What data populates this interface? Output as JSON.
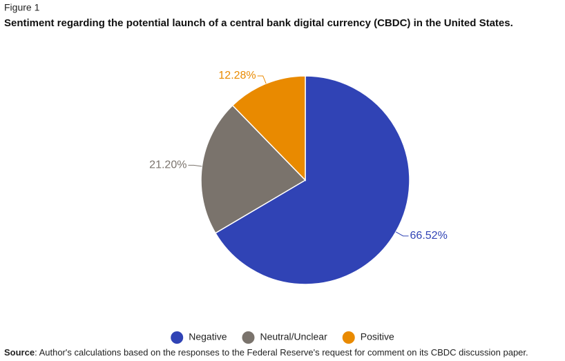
{
  "figure_label": "Figure 1",
  "chart_data": {
    "type": "pie",
    "title": "Sentiment regarding the potential launch of a central bank digital currency (CBDC) in the United States.",
    "categories": [
      "Negative",
      "Neutral/Unclear",
      "Positive"
    ],
    "values": [
      66.52,
      21.2,
      12.28
    ],
    "value_labels": [
      "66.52%",
      "21.20%",
      "12.28%"
    ],
    "colors": [
      "#3043b5",
      "#7a736c",
      "#e98a00"
    ],
    "legend": "bottom"
  },
  "source_label": "Source",
  "source": ": Author's calculations based on the responses to the Federal Reserve's request for comment on its CBDC discussion paper."
}
